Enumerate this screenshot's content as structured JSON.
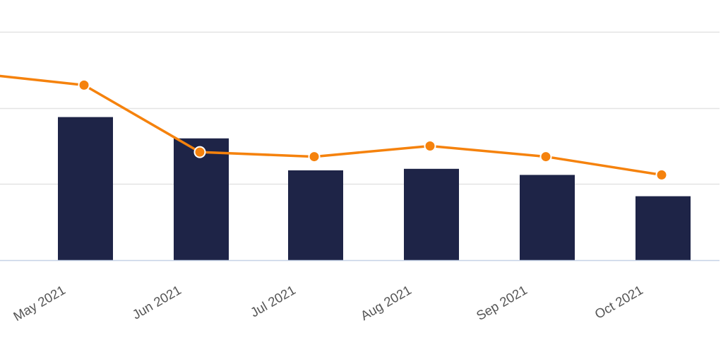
{
  "chart_data": {
    "type": "bar",
    "categories": [
      "May 2021",
      "Jun 2021",
      "Jul 2021",
      "Aug 2021",
      "Sep 2021",
      "Oct 2021"
    ],
    "series": [
      {
        "type": "bar",
        "values": [
          0.94,
          0.8,
          0.59,
          0.6,
          0.56,
          0.42
        ]
      },
      {
        "type": "line",
        "values": [
          1.15,
          0.71,
          0.68,
          0.75,
          0.68,
          0.56
        ],
        "leading_value": 1.21
      }
    ],
    "title": "",
    "xlabel": "",
    "ylabel": "",
    "ylim": [
      0,
      1.5
    ],
    "gridlines": [
      0.5,
      1.0,
      1.5
    ],
    "grid": true,
    "legend": "none",
    "colors": {
      "bar": "#1e2447",
      "line": "#f5820d",
      "grid": "#e3e3e3",
      "baseline": "#c6d2e6",
      "tick_label": "#555555"
    }
  }
}
